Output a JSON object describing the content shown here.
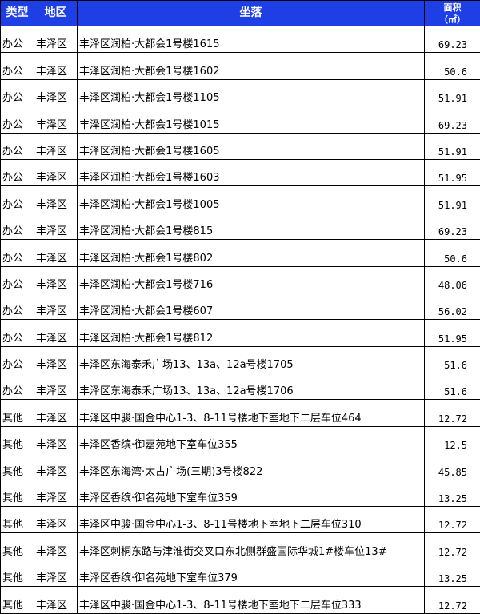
{
  "header": {
    "type": "类型",
    "district": "地区",
    "location": "坐落",
    "area": "面积",
    "area_unit": "（㎡）"
  },
  "colors": {
    "header_bg": "#1f3fe6",
    "header_text": "#ffffff"
  },
  "rows": [
    {
      "type": "办公",
      "district": "丰泽区",
      "location": "丰泽区润柏·大都会1号楼1615",
      "area": "69.23"
    },
    {
      "type": "办公",
      "district": "丰泽区",
      "location": "丰泽区润柏·大都会1号楼1602",
      "area": "50.6"
    },
    {
      "type": "办公",
      "district": "丰泽区",
      "location": "丰泽区润柏·大都会1号楼1105",
      "area": "51.91"
    },
    {
      "type": "办公",
      "district": "丰泽区",
      "location": "丰泽区润柏·大都会1号楼1015",
      "area": "69.23"
    },
    {
      "type": "办公",
      "district": "丰泽区",
      "location": "丰泽区润柏·大都会1号楼1605",
      "area": "51.91"
    },
    {
      "type": "办公",
      "district": "丰泽区",
      "location": "丰泽区润柏·大都会1号楼1603",
      "area": "51.95"
    },
    {
      "type": "办公",
      "district": "丰泽区",
      "location": "丰泽区润柏·大都会1号楼1005",
      "area": "51.91"
    },
    {
      "type": "办公",
      "district": "丰泽区",
      "location": "丰泽区润柏·大都会1号楼815",
      "area": "69.23"
    },
    {
      "type": "办公",
      "district": "丰泽区",
      "location": "丰泽区润柏·大都会1号楼802",
      "area": "50.6"
    },
    {
      "type": "办公",
      "district": "丰泽区",
      "location": "丰泽区润柏·大都会1号楼716",
      "area": "48.06"
    },
    {
      "type": "办公",
      "district": "丰泽区",
      "location": "丰泽区润柏·大都会1号楼607",
      "area": "56.02"
    },
    {
      "type": "办公",
      "district": "丰泽区",
      "location": "丰泽区润柏·大都会1号楼812",
      "area": "51.95"
    },
    {
      "type": "办公",
      "district": "丰泽区",
      "location": "丰泽区东海泰禾广场13、13a、12a号楼1705",
      "area": "51.6"
    },
    {
      "type": "办公",
      "district": "丰泽区",
      "location": "丰泽区东海泰禾广场13、13a、12a号楼1706",
      "area": "51.6"
    },
    {
      "type": "其他",
      "district": "丰泽区",
      "location": "丰泽区中骏·国金中心1-3、8-11号楼地下室地下二层车位464",
      "area": "12.72"
    },
    {
      "type": "其他",
      "district": "丰泽区",
      "location": "丰泽区香缤·御嘉苑地下室车位355",
      "area": "12.5"
    },
    {
      "type": "其他",
      "district": "丰泽区",
      "location": "丰泽区东海湾·太古广场(三期)3号楼822",
      "area": "45.85"
    },
    {
      "type": "其他",
      "district": "丰泽区",
      "location": "丰泽区香缤·御名苑地下室车位359",
      "area": "13.25"
    },
    {
      "type": "其他",
      "district": "丰泽区",
      "location": "丰泽区中骏·国金中心1-3、8-11号楼地下室地下二层车位310",
      "area": "12.72"
    },
    {
      "type": "其他",
      "district": "丰泽区",
      "location": "丰泽区刺桐东路与津淮街交叉口东北侧群盛国际华城1#楼车位13#",
      "area": "12.72"
    },
    {
      "type": "其他",
      "district": "丰泽区",
      "location": "丰泽区香缤·御名苑地下室车位379",
      "area": "13.25"
    },
    {
      "type": "其他",
      "district": "丰泽区",
      "location": "丰泽区中骏·国金中心1-3、8-11号楼地下室地下二层车位333",
      "area": "12.72"
    }
  ]
}
